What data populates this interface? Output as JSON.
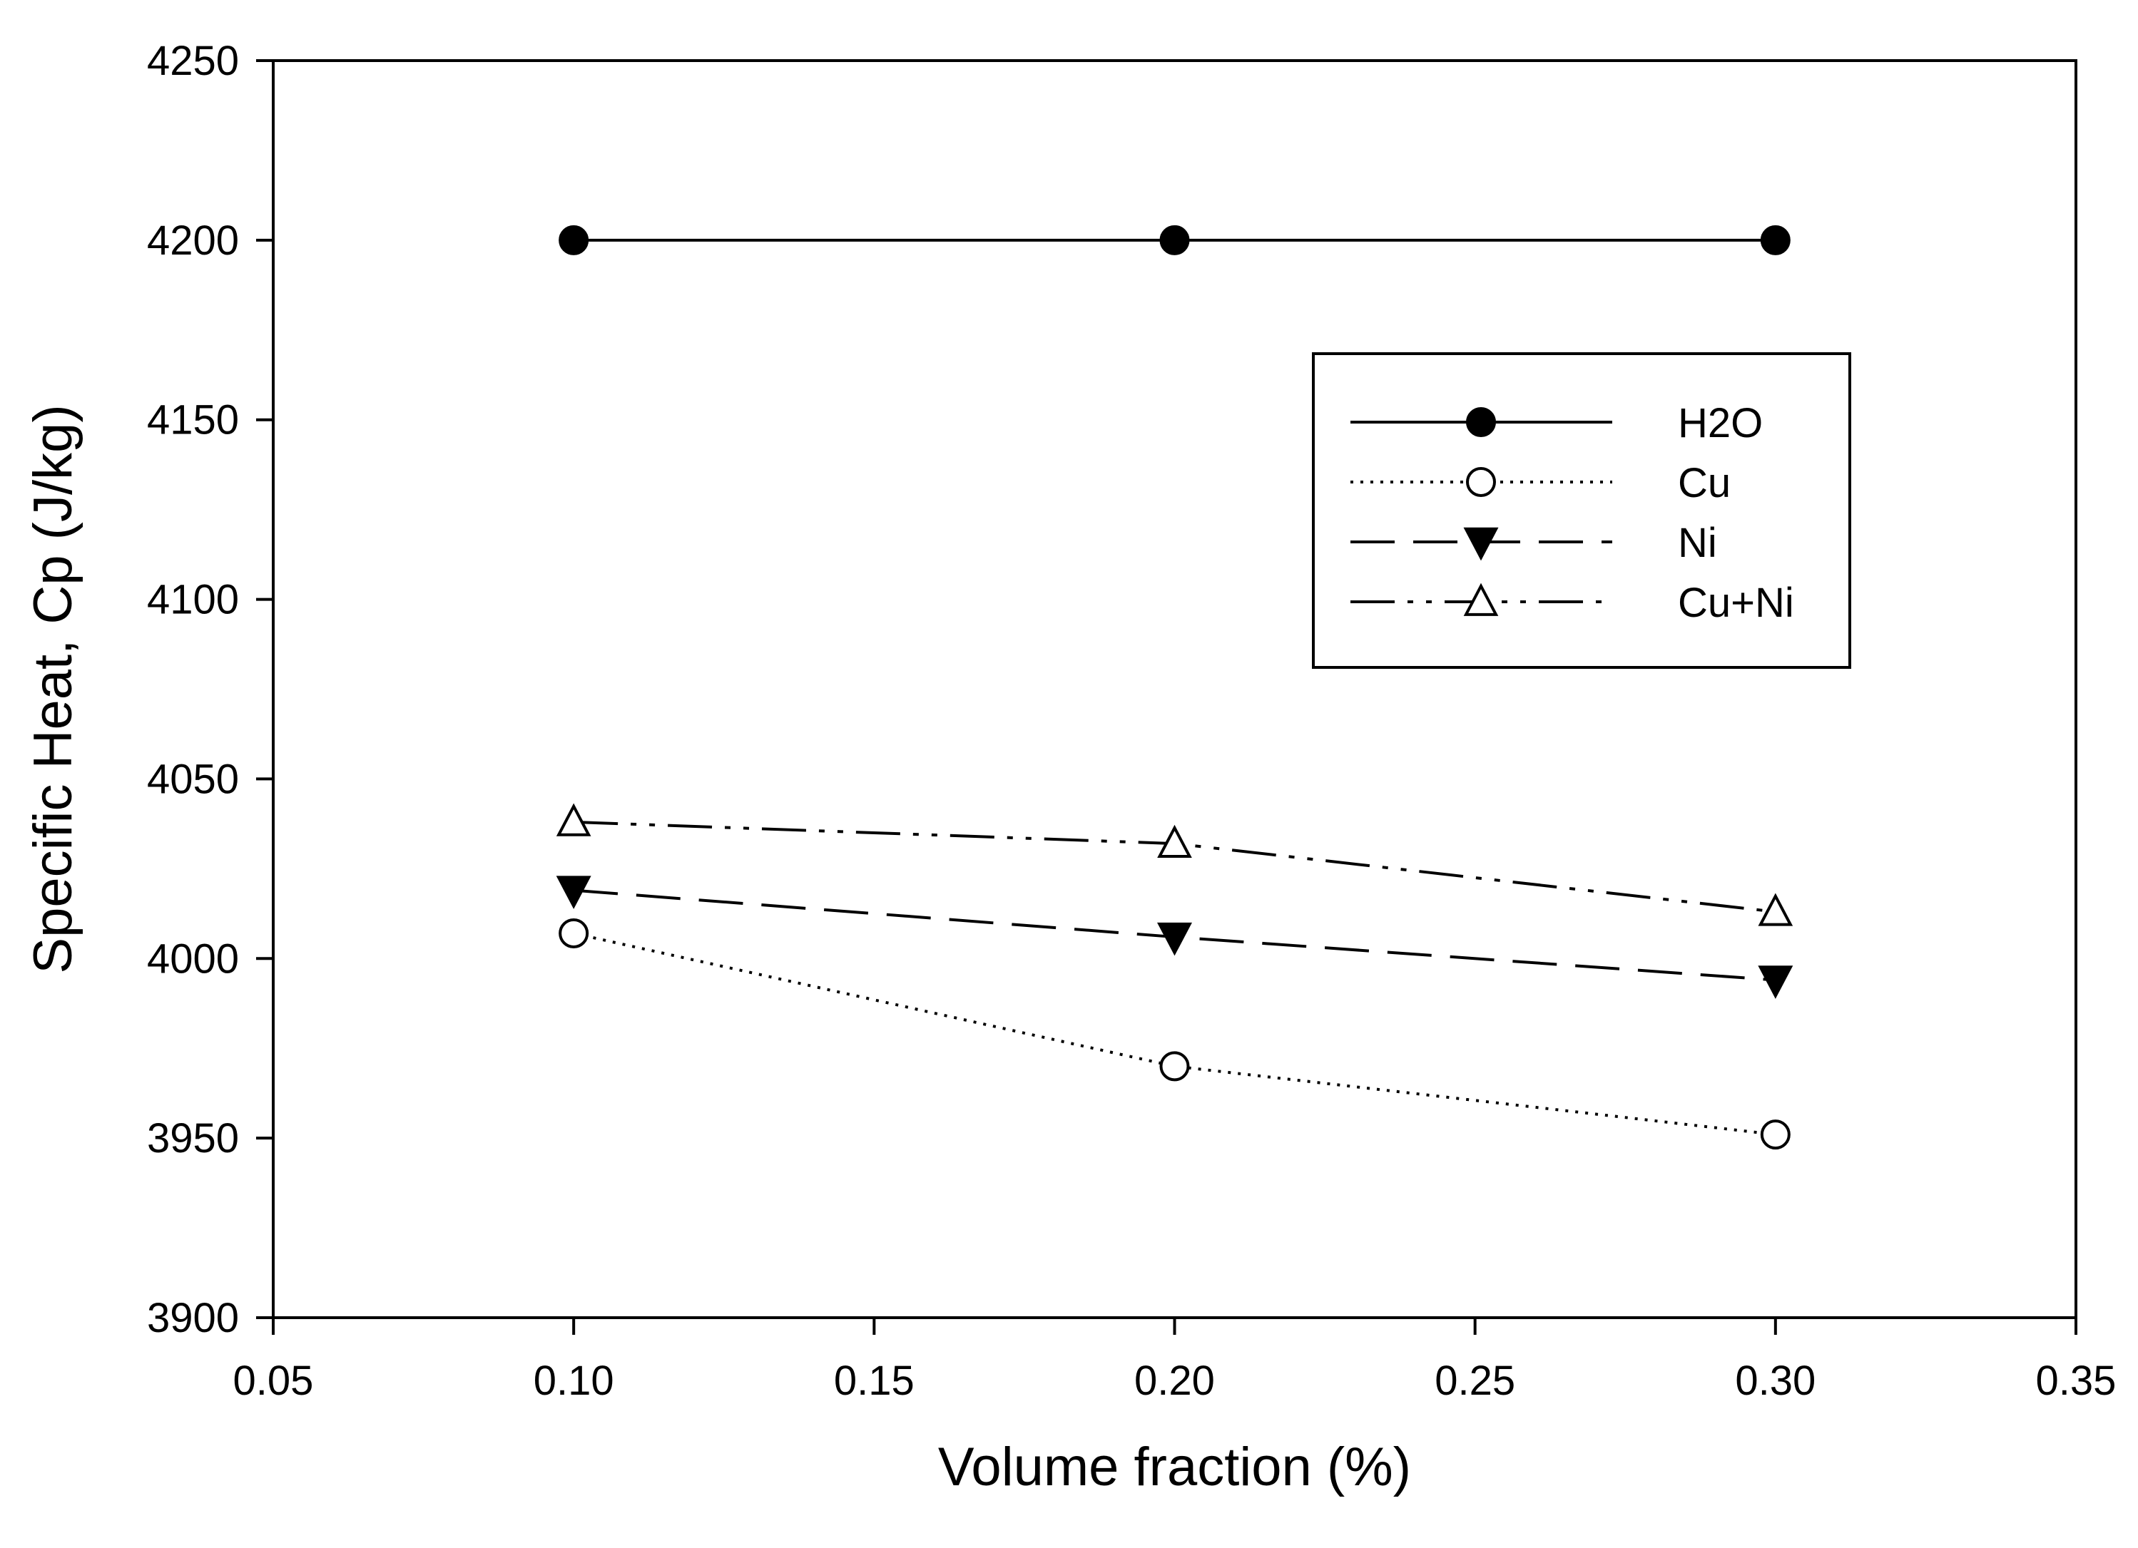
{
  "chart_data": {
    "type": "line",
    "title": "",
    "xlabel": "Volume fraction (%)",
    "ylabel": "Specific Heat, Cp (J/kg)",
    "xlim": [
      0.05,
      0.35
    ],
    "ylim": [
      3900,
      4250
    ],
    "xticks": [
      0.05,
      0.1,
      0.15,
      0.2,
      0.25,
      0.3,
      0.35
    ],
    "xtick_labels": [
      "0.05",
      "0.10",
      "0.15",
      "0.20",
      "0.25",
      "0.30",
      "0.35"
    ],
    "yticks": [
      3900,
      3950,
      4000,
      4050,
      4100,
      4150,
      4200,
      4250
    ],
    "ytick_labels": [
      "3900",
      "3950",
      "4000",
      "4050",
      "4100",
      "4150",
      "4200",
      "4250"
    ],
    "grid": false,
    "legend_position": "top-right",
    "x": [
      0.1,
      0.2,
      0.3
    ],
    "series": [
      {
        "name": "H2O",
        "values": [
          4200,
          4200,
          4200
        ],
        "marker": "filled-circle",
        "line": "solid"
      },
      {
        "name": "Cu",
        "values": [
          4007,
          3970,
          3951
        ],
        "marker": "open-circle",
        "line": "dotted"
      },
      {
        "name": "Ni",
        "values": [
          4019,
          4006,
          3994
        ],
        "marker": "filled-triangle-down",
        "line": "dashed"
      },
      {
        "name": "Cu+Ni",
        "values": [
          4038,
          4032,
          4013
        ],
        "marker": "open-triangle-up",
        "line": "dash-dot-dot"
      }
    ]
  }
}
